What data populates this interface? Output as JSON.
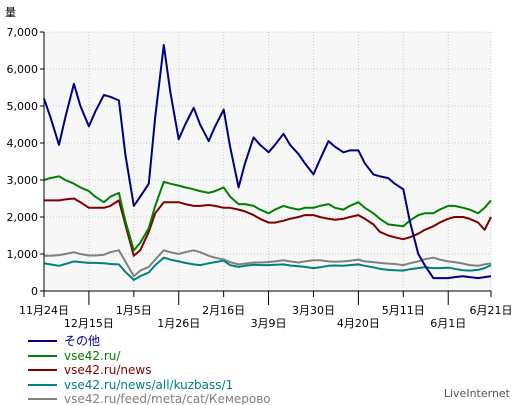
{
  "chart_data": {
    "type": "line",
    "y_unit_label": "量",
    "ylim": [
      0,
      7000
    ],
    "y_ticks": [
      0,
      1000,
      2000,
      3000,
      4000,
      5000,
      6000,
      7000
    ],
    "y_tick_labels": [
      "0",
      "1,000",
      "2,000",
      "3,000",
      "4,000",
      "5,000",
      "6,000",
      "7,000"
    ],
    "grid": true,
    "x_range": [
      "2010-11-24",
      "2011-06-21"
    ],
    "x_ticks": [
      {
        "date": "2010-11-24",
        "label": "11月24日",
        "row": 1
      },
      {
        "date": "2010-12-15",
        "label": "12月15日",
        "row": 2
      },
      {
        "date": "2011-01-05",
        "label": "1月5日",
        "row": 1
      },
      {
        "date": "2011-01-26",
        "label": "1月26日",
        "row": 2
      },
      {
        "date": "2011-02-16",
        "label": "2月16日",
        "row": 1
      },
      {
        "date": "2011-03-09",
        "label": "3月9日",
        "row": 2
      },
      {
        "date": "2011-03-30",
        "label": "3月30日",
        "row": 1
      },
      {
        "date": "2011-04-20",
        "label": "4月20日",
        "row": 2
      },
      {
        "date": "2011-05-11",
        "label": "5月11日",
        "row": 1
      },
      {
        "date": "2011-06-01",
        "label": "6月1日",
        "row": 2
      },
      {
        "date": "2011-06-21",
        "label": "6月21日",
        "row": 1
      }
    ],
    "x": [
      "2010-11-24",
      "2010-11-27",
      "2010-12-01",
      "2010-12-04",
      "2010-12-08",
      "2010-12-11",
      "2010-12-15",
      "2010-12-18",
      "2010-12-22",
      "2010-12-25",
      "2010-12-29",
      "2011-01-01",
      "2011-01-05",
      "2011-01-08",
      "2011-01-12",
      "2011-01-15",
      "2011-01-19",
      "2011-01-22",
      "2011-01-26",
      "2011-01-29",
      "2011-02-02",
      "2011-02-05",
      "2011-02-09",
      "2011-02-12",
      "2011-02-16",
      "2011-02-19",
      "2011-02-23",
      "2011-02-26",
      "2011-03-02",
      "2011-03-05",
      "2011-03-09",
      "2011-03-12",
      "2011-03-16",
      "2011-03-19",
      "2011-03-23",
      "2011-03-26",
      "2011-03-30",
      "2011-04-02",
      "2011-04-06",
      "2011-04-09",
      "2011-04-13",
      "2011-04-16",
      "2011-04-20",
      "2011-04-23",
      "2011-04-27",
      "2011-04-30",
      "2011-05-04",
      "2011-05-07",
      "2011-05-11",
      "2011-05-14",
      "2011-05-18",
      "2011-05-21",
      "2011-05-25",
      "2011-05-28",
      "2011-06-01",
      "2011-06-04",
      "2011-06-08",
      "2011-06-11",
      "2011-06-15",
      "2011-06-18",
      "2011-06-21"
    ],
    "series": [
      {
        "name": "その他",
        "color": "#000080",
        "values": [
          5200,
          4700,
          3950,
          4700,
          5600,
          5000,
          4450,
          4850,
          5300,
          5250,
          5150,
          3700,
          2300,
          2550,
          2900,
          4700,
          6650,
          5400,
          4100,
          4500,
          4950,
          4500,
          4050,
          4450,
          4900,
          3900,
          2800,
          3450,
          4150,
          3950,
          3750,
          3950,
          4250,
          3950,
          3700,
          3450,
          3150,
          3550,
          4050,
          3900,
          3750,
          3800,
          3800,
          3450,
          3150,
          3100,
          3050,
          2900,
          2750,
          1900,
          1000,
          700,
          350,
          350,
          350,
          375,
          400,
          375,
          350,
          375,
          400
        ]
      },
      {
        "name": "vse42.ru/",
        "color": "#008000",
        "values": [
          3000,
          3050,
          3100,
          3000,
          2900,
          2800,
          2700,
          2550,
          2400,
          2550,
          2650,
          1900,
          1100,
          1300,
          1700,
          2300,
          2950,
          2900,
          2850,
          2800,
          2750,
          2700,
          2650,
          2700,
          2800,
          2550,
          2350,
          2350,
          2300,
          2200,
          2100,
          2200,
          2300,
          2250,
          2200,
          2250,
          2250,
          2300,
          2350,
          2250,
          2200,
          2300,
          2400,
          2250,
          2100,
          1950,
          1800,
          1775,
          1750,
          1900,
          2050,
          2100,
          2100,
          2200,
          2300,
          2300,
          2250,
          2200,
          2100,
          2250,
          2450
        ]
      },
      {
        "name": "vse42.ru/news",
        "color": "#800000",
        "values": [
          2450,
          2450,
          2450,
          2475,
          2500,
          2400,
          2250,
          2250,
          2250,
          2300,
          2450,
          1800,
          950,
          1100,
          1600,
          2100,
          2400,
          2400,
          2400,
          2350,
          2300,
          2300,
          2325,
          2300,
          2250,
          2250,
          2200,
          2150,
          2050,
          1950,
          1850,
          1850,
          1900,
          1950,
          2000,
          2050,
          2050,
          2000,
          1950,
          1925,
          1950,
          2000,
          2050,
          1950,
          1800,
          1600,
          1500,
          1450,
          1400,
          1450,
          1550,
          1650,
          1750,
          1850,
          1950,
          2000,
          2000,
          1950,
          1850,
          1650,
          2000
        ]
      },
      {
        "name": "vse42.ru/news/all/kuzbass/1",
        "color": "#008080",
        "values": [
          750,
          720,
          680,
          730,
          800,
          780,
          760,
          760,
          750,
          730,
          720,
          520,
          300,
          400,
          500,
          700,
          900,
          850,
          800,
          760,
          720,
          700,
          750,
          780,
          820,
          700,
          650,
          680,
          710,
          700,
          700,
          710,
          720,
          690,
          670,
          650,
          620,
          640,
          680,
          690,
          680,
          700,
          720,
          680,
          640,
          600,
          570,
          560,
          550,
          590,
          620,
          640,
          620,
          620,
          630,
          600,
          560,
          550,
          570,
          620,
          700
        ]
      },
      {
        "name": "vse42.ru/feed/meta/cat/Кемерово",
        "color": "#808080",
        "values": [
          950,
          950,
          970,
          1000,
          1050,
          1000,
          960,
          960,
          980,
          1050,
          1100,
          800,
          400,
          550,
          650,
          850,
          1100,
          1050,
          1000,
          1050,
          1100,
          1050,
          950,
          900,
          850,
          780,
          720,
          740,
          770,
          770,
          780,
          800,
          830,
          800,
          770,
          800,
          830,
          830,
          800,
          790,
          800,
          820,
          850,
          800,
          780,
          760,
          740,
          730,
          700,
          750,
          800,
          860,
          900,
          850,
          800,
          780,
          740,
          700,
          680,
          720,
          750
        ]
      }
    ]
  },
  "brand": "LiveInternet"
}
